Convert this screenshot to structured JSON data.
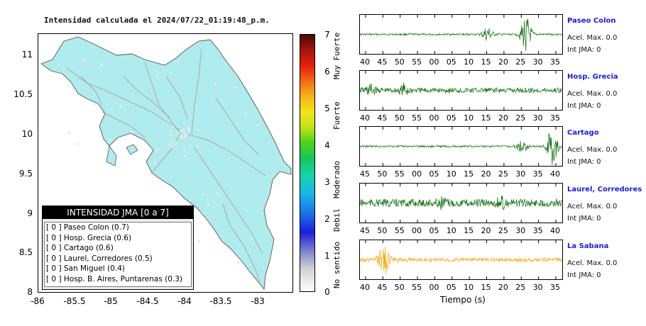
{
  "map": {
    "title": "Intensidad calculada el 2024/07/22_01:19:48_p.m.",
    "y_ticks": [
      "11",
      "10.5",
      "10",
      "9.5",
      "9",
      "8.5",
      "8"
    ],
    "x_ticks": [
      "-86",
      "-85.5",
      "-85",
      "-84.5",
      "-84",
      "-83.5",
      "-83"
    ],
    "fill_color": "#b0ebed",
    "road_color": "#aaaaaa"
  },
  "legend": {
    "title": "INTENSIDAD JMA [0 a 7]",
    "items": [
      "[ 0 ]  Paseo Colon (0.7)",
      "[ 0 ]  Hosp. Grecia (0.6)",
      "[ 0 ]  Cartago (0.6)",
      "[ 0 ]  Laurel, Corredores (0.5)",
      "[ 0 ]  San Miguel (0.4)",
      "[ 0 ]  Hosp. B. Aires, Puntarenas (0.3)"
    ]
  },
  "colorbar": {
    "ticks": [
      "7",
      "6",
      "5",
      "4",
      "3",
      "2",
      "1",
      "0"
    ],
    "labels": [
      "Muy Fuerte",
      "Fuerte",
      "Moderado",
      "Debil",
      "No sentido"
    ]
  },
  "stations": [
    {
      "name": "Paseo Colon",
      "acel": "Acel. Max. 0.0",
      "int": "Int JMA: 0",
      "color": "#0a6e0a",
      "ticks": [
        "40",
        "45",
        "50",
        "55",
        "00",
        "05",
        "10",
        "15",
        "20",
        "25",
        "30",
        "35"
      ]
    },
    {
      "name": "Hosp. Grecia",
      "acel": "Acel. Max. 0.0",
      "int": "Int JMA: 0",
      "color": "#0a6e0a",
      "ticks": [
        "40",
        "45",
        "50",
        "55",
        "00",
        "05",
        "10",
        "15",
        "20",
        "25",
        "30",
        "35"
      ]
    },
    {
      "name": "Cartago",
      "acel": "Acel. Max. 0.0",
      "int": "Int JMA: 0",
      "color": "#0a6e0a",
      "ticks": [
        "45",
        "50",
        "55",
        "00",
        "05",
        "10",
        "15",
        "20",
        "25",
        "30",
        "35",
        "40"
      ]
    },
    {
      "name": "Laurel, Corredores",
      "acel": "Acel. Max. 0.0",
      "int": "Int JMA: 0",
      "color": "#0a6e0a",
      "ticks": [
        "45",
        "50",
        "55",
        "00",
        "05",
        "10",
        "15",
        "20",
        "25",
        "30",
        "35",
        "40"
      ]
    },
    {
      "name": "La Sabana",
      "acel": "Acel. Max. 0.0",
      "int": "Int JMA: 0",
      "color": "#f2a400",
      "ticks": [
        "40",
        "45",
        "50",
        "55",
        "00",
        "05",
        "10",
        "15",
        "20",
        "25",
        "30",
        "35"
      ]
    }
  ],
  "waveform_xlabel": "Tiempo (s)"
}
